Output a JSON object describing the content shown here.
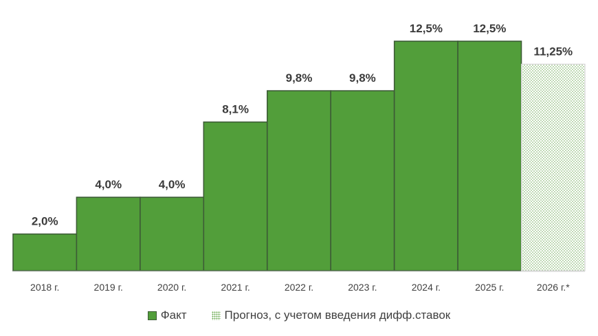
{
  "chart_data": {
    "type": "bar",
    "title": "",
    "xlabel": "",
    "ylabel": "",
    "ylim": [
      0,
      12.5
    ],
    "grid": false,
    "legend_position": "bottom",
    "categories": [
      "2018 г.",
      "2019 г.",
      "2020 г.",
      "2021 г.",
      "2022 г.",
      "2023 г.",
      "2024 г.",
      "2025 г.",
      "2026 г.*"
    ],
    "values": [
      2.0,
      4.0,
      4.0,
      8.1,
      9.8,
      9.8,
      12.5,
      12.5,
      11.25
    ],
    "value_labels": [
      "2,0%",
      "4,0%",
      "4,0%",
      "8,1%",
      "9,8%",
      "9,8%",
      "12,5%",
      "12,5%",
      "11,25%"
    ],
    "series_type": [
      "fact",
      "fact",
      "fact",
      "fact",
      "fact",
      "fact",
      "fact",
      "fact",
      "forecast"
    ],
    "series": [
      {
        "name": "Факт",
        "values": [
          2.0,
          4.0,
          4.0,
          8.1,
          9.8,
          9.8,
          12.5,
          12.5,
          null
        ],
        "color": "#529e3a"
      },
      {
        "name": "Прогноз, с учетом введения дифф.ставок",
        "values": [
          null,
          null,
          null,
          null,
          null,
          null,
          null,
          null,
          11.25
        ],
        "color": "#6aa84f",
        "pattern": "dots"
      }
    ]
  },
  "legend": {
    "fact_label": "Факт",
    "forecast_label": "Прогноз, с учетом введения дифф.ставок"
  },
  "colors": {
    "fact_fill": "#529e3a",
    "fact_border": "#3d5c36",
    "forecast_dots": "#6aa84f",
    "label_text": "#3b3b3b"
  }
}
